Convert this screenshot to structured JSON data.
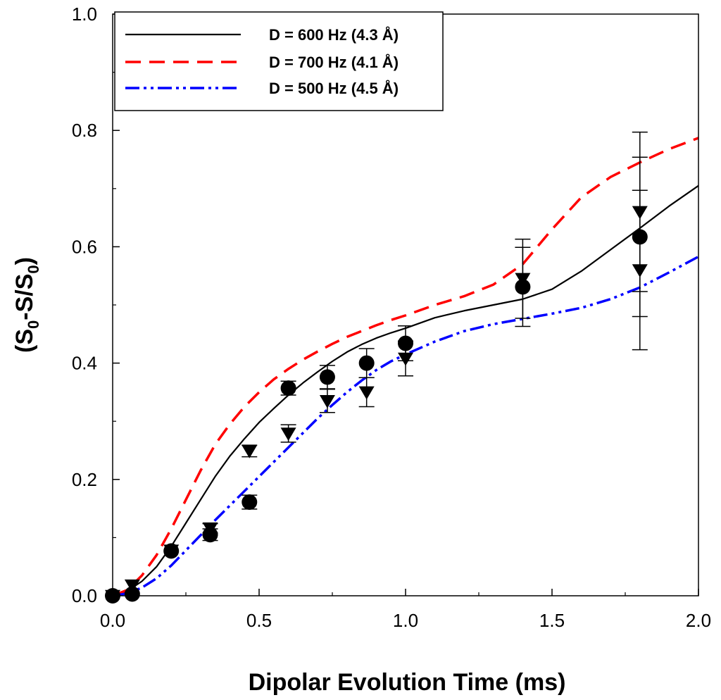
{
  "chart_data": {
    "type": "scatter",
    "title": "",
    "xlabel": "Dipolar Evolution Time (ms)",
    "ylabel": {
      "base1": "(S",
      "sub1": "0",
      "mid": "-S/S",
      "sub2": "0",
      "end": ")"
    },
    "xlim": [
      0,
      2.0
    ],
    "ylim": [
      0,
      1.0
    ],
    "xticks": [
      0.0,
      0.5,
      1.0,
      1.5,
      2.0
    ],
    "xtick_labels": [
      "0.0",
      "0.5",
      "1.0",
      "1.5",
      "2.0"
    ],
    "yticks": [
      0.0,
      0.2,
      0.4,
      0.6,
      0.8,
      1.0
    ],
    "ytick_labels": [
      "0.0",
      "0.2",
      "0.4",
      "0.6",
      "0.8",
      "1.0"
    ],
    "grid": false,
    "legend_position": "top-left",
    "curves": [
      {
        "name": "D = 600 Hz (4.3 Å)",
        "style": "solid",
        "color": "#000000",
        "x": [
          0.0,
          0.05,
          0.1,
          0.15,
          0.2,
          0.25,
          0.3,
          0.35,
          0.4,
          0.45,
          0.5,
          0.55,
          0.6,
          0.65,
          0.7,
          0.75,
          0.8,
          0.85,
          0.9,
          0.95,
          1.0,
          1.1,
          1.2,
          1.3,
          1.4,
          1.5,
          1.6,
          1.7,
          1.8,
          1.9,
          2.0
        ],
        "y": [
          0.0,
          0.008,
          0.025,
          0.05,
          0.085,
          0.125,
          0.165,
          0.205,
          0.24,
          0.27,
          0.298,
          0.322,
          0.345,
          0.366,
          0.385,
          0.403,
          0.419,
          0.432,
          0.443,
          0.452,
          0.46,
          0.478,
          0.49,
          0.5,
          0.51,
          0.527,
          0.558,
          0.595,
          0.632,
          0.67,
          0.705
        ]
      },
      {
        "name": "D = 700 Hz (4.1 Å)",
        "style": "dashed",
        "color": "#ff0000",
        "x": [
          0.0,
          0.05,
          0.1,
          0.15,
          0.2,
          0.25,
          0.3,
          0.35,
          0.4,
          0.45,
          0.5,
          0.55,
          0.6,
          0.65,
          0.7,
          0.75,
          0.8,
          0.85,
          0.9,
          0.95,
          1.0,
          1.1,
          1.2,
          1.3,
          1.4,
          1.5,
          1.6,
          1.7,
          1.8,
          1.9,
          2.0
        ],
        "y": [
          0.0,
          0.01,
          0.035,
          0.07,
          0.115,
          0.165,
          0.215,
          0.26,
          0.295,
          0.325,
          0.35,
          0.372,
          0.39,
          0.406,
          0.42,
          0.433,
          0.445,
          0.455,
          0.465,
          0.474,
          0.482,
          0.5,
          0.515,
          0.535,
          0.57,
          0.63,
          0.685,
          0.72,
          0.745,
          0.768,
          0.787
        ]
      },
      {
        "name": "D = 500 Hz (4.5 Å)",
        "style": "dash-dot-dot",
        "color": "#0000ff",
        "x": [
          0.0,
          0.05,
          0.1,
          0.15,
          0.2,
          0.25,
          0.3,
          0.35,
          0.4,
          0.45,
          0.5,
          0.55,
          0.6,
          0.65,
          0.7,
          0.75,
          0.8,
          0.85,
          0.9,
          0.95,
          1.0,
          1.1,
          1.2,
          1.3,
          1.4,
          1.5,
          1.6,
          1.7,
          1.8,
          1.9,
          2.0
        ],
        "y": [
          0.0,
          0.004,
          0.014,
          0.03,
          0.052,
          0.078,
          0.104,
          0.13,
          0.155,
          0.18,
          0.205,
          0.23,
          0.255,
          0.28,
          0.305,
          0.328,
          0.35,
          0.37,
          0.388,
          0.403,
          0.415,
          0.437,
          0.455,
          0.467,
          0.476,
          0.485,
          0.495,
          0.51,
          0.53,
          0.556,
          0.583
        ]
      }
    ],
    "points": {
      "circles": [
        {
          "x": 0.0,
          "y": 0.0,
          "err": 0.0
        },
        {
          "x": 0.067,
          "y": 0.003,
          "err": 0.0
        },
        {
          "x": 0.2,
          "y": 0.077,
          "err": 0.0
        },
        {
          "x": 0.333,
          "y": 0.105,
          "err": 0.01
        },
        {
          "x": 0.467,
          "y": 0.161,
          "err": 0.012
        },
        {
          "x": 0.6,
          "y": 0.357,
          "err": 0.012
        },
        {
          "x": 0.733,
          "y": 0.376,
          "err": 0.02
        },
        {
          "x": 0.867,
          "y": 0.4,
          "err": 0.025
        },
        {
          "x": 1.0,
          "y": 0.434,
          "err": 0.03
        },
        {
          "x": 1.4,
          "y": 0.531,
          "err": 0.068
        },
        {
          "x": 1.8,
          "y": 0.617,
          "err": 0.137
        }
      ],
      "triangles": [
        {
          "x": 0.0,
          "y": 0.0,
          "err": 0.0
        },
        {
          "x": 0.067,
          "y": 0.018,
          "err": 0.0
        },
        {
          "x": 0.2,
          "y": 0.078,
          "err": 0.0
        },
        {
          "x": 0.333,
          "y": 0.116,
          "err": 0.008
        },
        {
          "x": 0.467,
          "y": 0.249,
          "err": 0.01
        },
        {
          "x": 0.6,
          "y": 0.279,
          "err": 0.015
        },
        {
          "x": 0.733,
          "y": 0.335,
          "err": 0.02
        },
        {
          "x": 0.867,
          "y": 0.35,
          "err": 0.025
        },
        {
          "x": 1.0,
          "y": 0.408,
          "err": 0.03
        },
        {
          "x": 1.4,
          "y": 0.545,
          "err": 0.068
        },
        {
          "x": 1.8,
          "y": 0.56,
          "err": 0.137
        },
        {
          "x": 1.8,
          "y": 0.66,
          "err": 0.137
        }
      ]
    }
  }
}
